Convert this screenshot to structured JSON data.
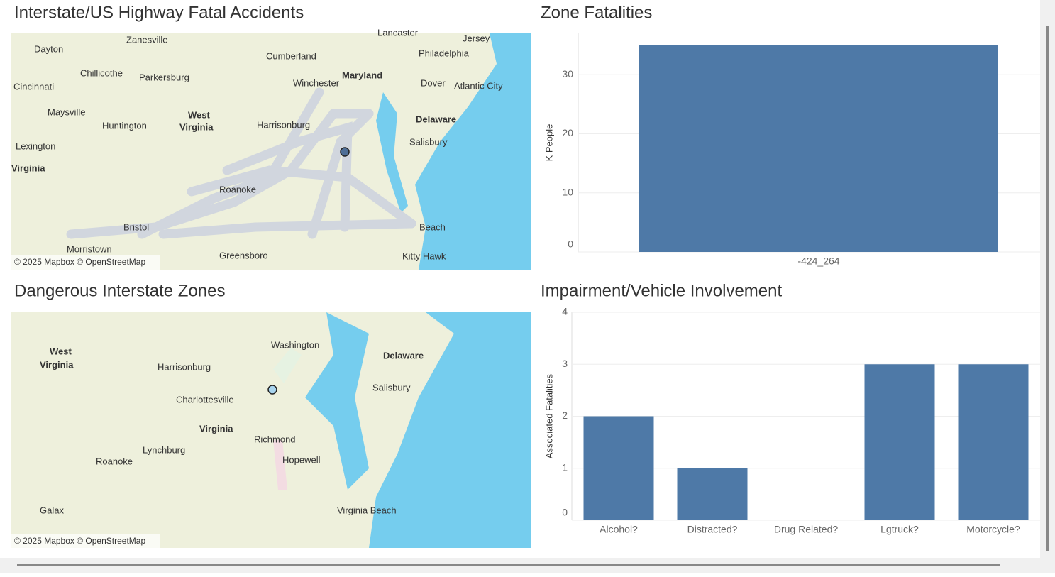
{
  "chart_data": [
    {
      "type": "bar",
      "title": "Zone Fatalities",
      "y_label": "K People",
      "categories": [
        "-424_264"
      ],
      "values": [
        35
      ],
      "color": "#4e79a7",
      "ylim": [
        0,
        37
      ],
      "yticks": [
        0,
        10,
        20,
        30
      ],
      "grid": true
    },
    {
      "type": "bar",
      "title": "Impairment/Vehicle Involvement",
      "y_label": "Associated Fatalities",
      "categories": [
        "Alcohol?",
        "Distracted?",
        "Drug Related?",
        "Lgtruck?",
        "Motorcycle?"
      ],
      "values": [
        2,
        1,
        0,
        3,
        3
      ],
      "color": "#4e79a7",
      "ylim": [
        0,
        4
      ],
      "yticks": [
        0,
        1,
        2,
        3,
        4
      ],
      "grid": true
    }
  ],
  "maps": [
    {
      "title": "Interstate/US Highway Fatal Accidents",
      "attribution": "© 2025 Mapbox © OpenStreetMap",
      "labels": [
        "Dayton",
        "Zanesville",
        "Lancaster",
        "Jersey",
        "Philadelphia",
        "Cumberland",
        "Chillicothe",
        "Parkersburg",
        "Maryland",
        "Cincinnati",
        "Winchester",
        "Dover",
        "Atlantic City",
        "West",
        "Virginia",
        "Maysville",
        "Huntington",
        "Harrisonburg",
        "Delaware",
        "Salisbury",
        "Lexington",
        "Virginia",
        "Roanoke",
        "Bristol",
        "Morristown",
        "Greensboro",
        "Kitty Hawk",
        "Beach"
      ]
    },
    {
      "title": "Dangerous Interstate Zones",
      "attribution": "© 2025 Mapbox © OpenStreetMap",
      "labels": [
        "West",
        "Virginia",
        "Washington",
        "Delaware",
        "Harrisonburg",
        "Salisbury",
        "Charlottesville",
        "Virginia",
        "Richmond",
        "Lynchburg",
        "Roanoke",
        "Hopewell",
        "Galax",
        "Virginia Beach"
      ]
    }
  ]
}
